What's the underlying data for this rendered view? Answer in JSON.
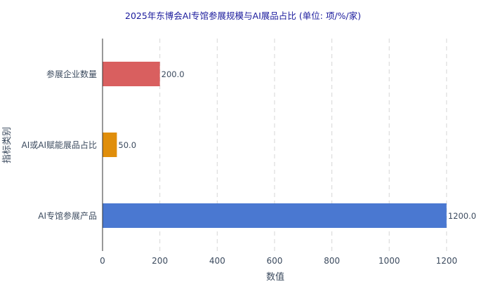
{
  "chart_data": {
    "type": "bar",
    "orientation": "horizontal",
    "title": "2025年东博会AI专馆参展规模与AI展品占比 (单位: 项/%/家)",
    "xlabel": "数值",
    "ylabel": "指标类别",
    "categories": [
      "参展企业数量",
      "AI或AI赋能展品占比",
      "AI专馆参展产品"
    ],
    "values": [
      200,
      50,
      1200
    ],
    "value_labels": [
      "200.0",
      "50.0",
      "1200.0"
    ],
    "colors": [
      "#d95f5f",
      "#e08e0b",
      "#4a78d1"
    ],
    "xlim": [
      0,
      1220
    ],
    "xticks": [
      0,
      200,
      400,
      600,
      800,
      1000,
      1200
    ],
    "xtick_labels": [
      "0",
      "200",
      "400",
      "600",
      "800",
      "1000",
      "1200"
    ],
    "grid": "x-dashed",
    "legend": "none"
  }
}
